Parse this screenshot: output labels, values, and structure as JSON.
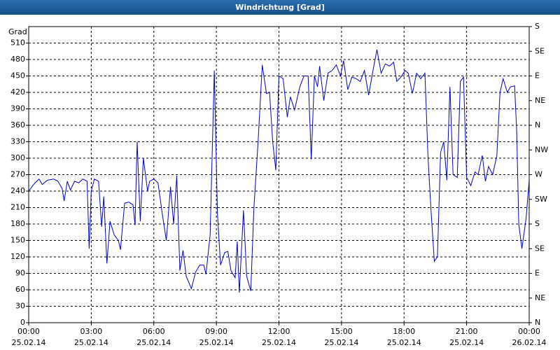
{
  "chart_data": {
    "type": "line",
    "title": "Windrichtung [Grad]",
    "y_label": "Grad",
    "xlim": [
      0,
      24
    ],
    "xticks": [
      {
        "value": 0,
        "label": "00:00",
        "date": "25.02.14"
      },
      {
        "value": 3,
        "label": "03:00",
        "date": "25.02.14"
      },
      {
        "value": 6,
        "label": "06:00",
        "date": "25.02.14"
      },
      {
        "value": 9,
        "label": "09:00",
        "date": "25.02.14"
      },
      {
        "value": 12,
        "label": "12:00",
        "date": "25.02.14"
      },
      {
        "value": 15,
        "label": "15:00",
        "date": "25.02.14"
      },
      {
        "value": 18,
        "label": "18:00",
        "date": "25.02.14"
      },
      {
        "value": 21,
        "label": "21:00",
        "date": "25.02.14"
      },
      {
        "value": 24,
        "label": "00:00",
        "date": "26.02.14"
      }
    ],
    "ylim": [
      0,
      540
    ],
    "yticks": [
      0,
      30,
      60,
      90,
      120,
      150,
      180,
      210,
      240,
      270,
      300,
      330,
      360,
      390,
      420,
      450,
      480,
      510
    ],
    "y2lim": [
      0,
      540
    ],
    "y2ticks": [
      {
        "value": 0,
        "label": "N"
      },
      {
        "value": 45,
        "label": "NE"
      },
      {
        "value": 90,
        "label": "E"
      },
      {
        "value": 135,
        "label": "SE"
      },
      {
        "value": 180,
        "label": "S"
      },
      {
        "value": 225,
        "label": "SW"
      },
      {
        "value": 270,
        "label": "W"
      },
      {
        "value": 315,
        "label": "NW"
      },
      {
        "value": 360,
        "label": "N"
      },
      {
        "value": 405,
        "label": "NE"
      },
      {
        "value": 450,
        "label": "E"
      },
      {
        "value": 495,
        "label": "SE"
      },
      {
        "value": 540,
        "label": "S"
      }
    ],
    "grid": true,
    "series": [
      {
        "color": "#0000cc",
        "x": [
          0.0,
          0.3,
          0.5,
          0.65,
          0.9,
          1.2,
          1.4,
          1.6,
          1.7,
          1.85,
          2.0,
          2.2,
          2.4,
          2.6,
          2.8,
          2.9,
          3.0,
          3.15,
          3.35,
          3.5,
          3.6,
          3.75,
          3.9,
          4.1,
          4.3,
          4.4,
          4.6,
          4.8,
          5.0,
          5.1,
          5.2,
          5.35,
          5.5,
          5.7,
          5.8,
          6.0,
          6.2,
          6.4,
          6.6,
          6.8,
          6.95,
          7.1,
          7.25,
          7.4,
          7.55,
          7.8,
          8.0,
          8.2,
          8.4,
          8.5,
          8.7,
          8.9,
          9.05,
          9.2,
          9.4,
          9.55,
          9.7,
          9.9,
          10.0,
          10.1,
          10.3,
          10.45,
          10.65,
          10.8,
          11.0,
          11.2,
          11.4,
          11.55,
          11.7,
          11.85,
          12.0,
          12.2,
          12.4,
          12.55,
          12.75,
          13.0,
          13.2,
          13.4,
          13.55,
          13.7,
          13.85,
          13.95,
          14.15,
          14.35,
          14.55,
          14.75,
          14.95,
          15.1,
          15.3,
          15.5,
          15.7,
          15.9,
          16.1,
          16.3,
          16.5,
          16.7,
          16.9,
          17.1,
          17.3,
          17.5,
          17.65,
          17.85,
          18.05,
          18.2,
          18.4,
          18.6,
          18.8,
          19.0,
          19.15,
          19.3,
          19.45,
          19.6,
          19.75,
          19.9,
          20.05,
          20.2,
          20.35,
          20.55,
          20.7,
          20.85,
          21.0,
          21.2,
          21.4,
          21.55,
          21.75,
          21.9,
          22.05,
          22.25,
          22.45,
          22.6,
          22.75,
          22.95,
          23.1,
          23.3,
          23.4,
          23.5,
          23.65,
          23.85,
          24.0
        ],
        "values": [
          240,
          255,
          262,
          252,
          260,
          262,
          258,
          245,
          222,
          258,
          242,
          258,
          255,
          262,
          258,
          135,
          240,
          262,
          258,
          175,
          230,
          108,
          185,
          160,
          150,
          133,
          218,
          220,
          215,
          178,
          330,
          185,
          300,
          240,
          258,
          262,
          255,
          200,
          150,
          248,
          180,
          268,
          95,
          132,
          85,
          62,
          92,
          105,
          105,
          88,
          160,
          460,
          200,
          105,
          128,
          130,
          95,
          82,
          148,
          55,
          205,
          85,
          58,
          210,
          330,
          470,
          418,
          420,
          330,
          278,
          450,
          445,
          375,
          412,
          388,
          430,
          450,
          450,
          298,
          450,
          430,
          468,
          405,
          455,
          460,
          470,
          450,
          478,
          425,
          448,
          445,
          440,
          460,
          415,
          458,
          498,
          455,
          472,
          468,
          475,
          440,
          448,
          460,
          455,
          418,
          455,
          445,
          455,
          300,
          200,
          112,
          120,
          310,
          330,
          260,
          430,
          270,
          265,
          440,
          448,
          265,
          250,
          275,
          270,
          305,
          258,
          285,
          270,
          305,
          420,
          445,
          420,
          430,
          432,
          350,
          180,
          135,
          190,
          260
        ]
      }
    ]
  }
}
